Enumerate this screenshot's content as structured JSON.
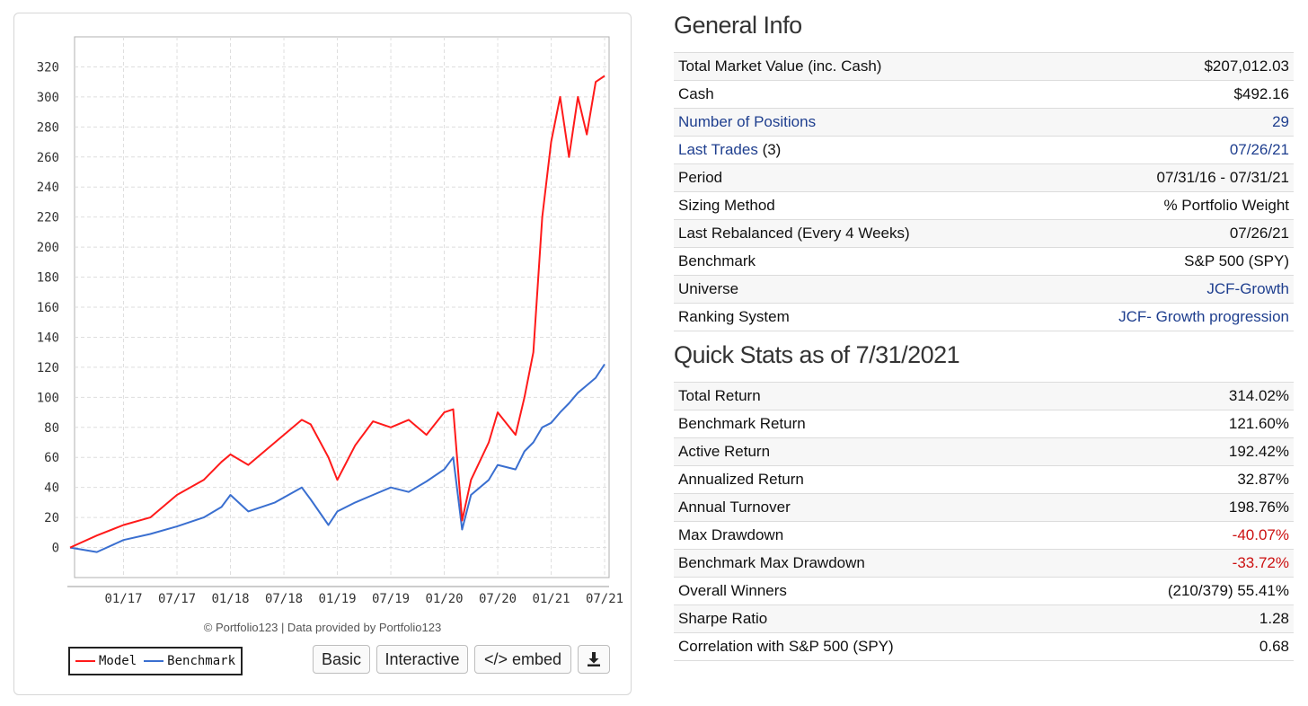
{
  "chart_data": {
    "type": "line",
    "x_ticks": [
      "01/17",
      "07/17",
      "01/18",
      "07/18",
      "01/19",
      "07/19",
      "01/20",
      "07/20",
      "01/21",
      "07/21"
    ],
    "y_ticks": [
      0,
      20,
      40,
      60,
      80,
      100,
      120,
      140,
      160,
      180,
      200,
      220,
      240,
      260,
      280,
      300,
      320
    ],
    "ylim": [
      -20,
      340
    ],
    "xlim": [
      "07/31/16",
      "07/31/21"
    ],
    "credit": "© Portfolio123 | Data provided by Portfolio123",
    "series": [
      {
        "name": "Model",
        "color": "#ff1a1a",
        "x": [
          "2016-07",
          "2016-10",
          "2017-01",
          "2017-04",
          "2017-07",
          "2017-10",
          "2017-12",
          "2018-01",
          "2018-03",
          "2018-06",
          "2018-09",
          "2018-10",
          "2018-12",
          "2019-01",
          "2019-03",
          "2019-05",
          "2019-07",
          "2019-09",
          "2019-11",
          "2020-01",
          "2020-02",
          "2020-03",
          "2020-04",
          "2020-06",
          "2020-07",
          "2020-09",
          "2020-10",
          "2020-11",
          "2020-12",
          "2021-01",
          "2021-02",
          "2021-03",
          "2021-04",
          "2021-05",
          "2021-06",
          "2021-07"
        ],
        "values": [
          0,
          8,
          15,
          20,
          35,
          45,
          57,
          62,
          55,
          70,
          85,
          82,
          60,
          45,
          68,
          84,
          80,
          85,
          75,
          90,
          92,
          18,
          45,
          70,
          90,
          75,
          100,
          130,
          220,
          270,
          300,
          260,
          300,
          275,
          310,
          314
        ]
      },
      {
        "name": "Benchmark",
        "color": "#3a6fd0",
        "x": [
          "2016-07",
          "2016-10",
          "2017-01",
          "2017-04",
          "2017-07",
          "2017-10",
          "2017-12",
          "2018-01",
          "2018-03",
          "2018-06",
          "2018-09",
          "2018-10",
          "2018-12",
          "2019-01",
          "2019-03",
          "2019-05",
          "2019-07",
          "2019-09",
          "2019-11",
          "2020-01",
          "2020-02",
          "2020-03",
          "2020-04",
          "2020-06",
          "2020-07",
          "2020-09",
          "2020-10",
          "2020-11",
          "2020-12",
          "2021-01",
          "2021-02",
          "2021-03",
          "2021-04",
          "2021-05",
          "2021-06",
          "2021-07"
        ],
        "values": [
          0,
          -3,
          5,
          9,
          14,
          20,
          27,
          35,
          24,
          30,
          40,
          32,
          15,
          24,
          30,
          35,
          40,
          37,
          44,
          52,
          60,
          12,
          35,
          45,
          55,
          52,
          64,
          70,
          80,
          83,
          90,
          96,
          103,
          108,
          113,
          122
        ]
      }
    ]
  },
  "legend": {
    "model": "Model",
    "benchmark": "Benchmark"
  },
  "buttons": {
    "basic": "Basic",
    "interactive": "Interactive",
    "embed": "</> embed"
  },
  "general_info": {
    "title": "General Info",
    "rows": [
      {
        "label": "Total Market Value (inc. Cash)",
        "value": "$207,012.03"
      },
      {
        "label": "Cash",
        "value": "$492.16"
      },
      {
        "label": "Number of Positions",
        "value": "29"
      },
      {
        "label": "Last Trades",
        "label_suffix": "(3)",
        "value": "07/26/21"
      },
      {
        "label": "Period",
        "value": "07/31/16 - 07/31/21"
      },
      {
        "label": "Sizing Method",
        "value": "% Portfolio Weight"
      },
      {
        "label": "Last Rebalanced (Every 4 Weeks)",
        "value": "07/26/21"
      },
      {
        "label": "Benchmark",
        "value": "S&P 500 (SPY)"
      },
      {
        "label": "Universe",
        "value": "JCF-Growth"
      },
      {
        "label": "Ranking System",
        "value": "JCF- Growth progression"
      }
    ]
  },
  "quick_stats": {
    "title": "Quick Stats as of 7/31/2021",
    "rows": [
      {
        "label": "Total Return",
        "value": "314.02%"
      },
      {
        "label": "Benchmark Return",
        "value": "121.60%"
      },
      {
        "label": "Active Return",
        "value": "192.42%"
      },
      {
        "label": "Annualized Return",
        "value": "32.87%"
      },
      {
        "label": "Annual Turnover",
        "value": "198.76%"
      },
      {
        "label": "Max Drawdown",
        "value": "-40.07%"
      },
      {
        "label": "Benchmark Max Drawdown",
        "value": "-33.72%"
      },
      {
        "label": "Overall Winners",
        "value": "(210/379) 55.41%"
      },
      {
        "label": "Sharpe Ratio",
        "value": "1.28"
      },
      {
        "label": "Correlation with S&P 500 (SPY)",
        "value": "0.68"
      }
    ]
  }
}
